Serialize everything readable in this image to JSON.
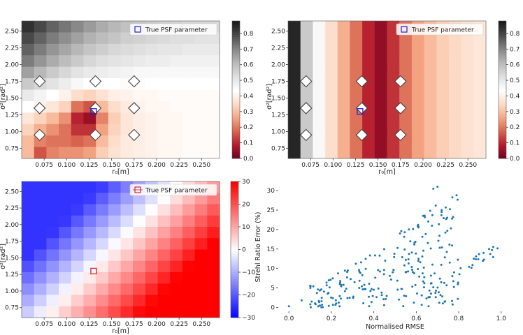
{
  "chart_data": [
    {
      "type": "heatmap",
      "panel": "top-left",
      "title": "",
      "xlabel": "r₀[m]",
      "ylabel": "σ²[rad²]",
      "x_ticks": [
        "0.075",
        "0.100",
        "0.125",
        "0.150",
        "0.175",
        "0.200",
        "0.225",
        "0.250"
      ],
      "y_ticks": [
        "0.75",
        "1.00",
        "1.25",
        "1.50",
        "1.75",
        "2.00",
        "2.25",
        "2.50"
      ],
      "xlim": [
        0.05,
        0.27
      ],
      "ylim": [
        0.6,
        2.65
      ],
      "colormap": "RdGy",
      "colorbar_ticks": [
        "0.8",
        "0.7",
        "0.6",
        "0.5",
        "0.4",
        "0.3",
        "0.2",
        "0.1",
        "0.0"
      ],
      "colorbar_range": [
        0.0,
        0.88
      ],
      "legend": "True PSF parameter",
      "legend_position": "top-right",
      "true_param": {
        "r0": 0.13,
        "sigma2": 1.3
      },
      "diamonds": [
        [
          0.07,
          1.75
        ],
        [
          0.132,
          1.75
        ],
        [
          0.175,
          1.75
        ],
        [
          0.07,
          1.35
        ],
        [
          0.132,
          1.35
        ],
        [
          0.175,
          1.35
        ],
        [
          0.07,
          0.95
        ],
        [
          0.132,
          0.95
        ],
        [
          0.175,
          0.95
        ]
      ],
      "rows_top_to_bottom": [
        [
          0.84,
          0.8,
          0.76,
          0.73,
          0.7,
          0.67,
          0.64,
          0.62,
          0.6,
          0.59,
          0.58,
          0.57,
          0.56,
          0.55,
          0.55,
          0.55
        ],
        [
          0.8,
          0.76,
          0.72,
          0.69,
          0.66,
          0.63,
          0.61,
          0.59,
          0.57,
          0.56,
          0.55,
          0.54,
          0.53,
          0.53,
          0.52,
          0.52
        ],
        [
          0.76,
          0.72,
          0.68,
          0.65,
          0.62,
          0.59,
          0.57,
          0.55,
          0.54,
          0.53,
          0.52,
          0.51,
          0.51,
          0.5,
          0.5,
          0.5
        ],
        [
          0.72,
          0.68,
          0.64,
          0.61,
          0.58,
          0.55,
          0.53,
          0.52,
          0.51,
          0.5,
          0.49,
          0.49,
          0.48,
          0.48,
          0.48,
          0.48
        ],
        [
          0.66,
          0.62,
          0.58,
          0.55,
          0.52,
          0.5,
          0.49,
          0.48,
          0.47,
          0.46,
          0.46,
          0.46,
          0.46,
          0.46,
          0.46,
          0.46
        ],
        [
          0.58,
          0.55,
          0.52,
          0.49,
          0.46,
          0.44,
          0.44,
          0.44,
          0.43,
          0.43,
          0.44,
          0.44,
          0.44,
          0.44,
          0.44,
          0.44
        ],
        [
          0.5,
          0.47,
          0.44,
          0.41,
          0.36,
          0.34,
          0.37,
          0.4,
          0.41,
          0.42,
          0.42,
          0.43,
          0.43,
          0.43,
          0.43,
          0.43
        ],
        [
          0.44,
          0.41,
          0.38,
          0.34,
          0.2,
          0.16,
          0.3,
          0.36,
          0.39,
          0.41,
          0.42,
          0.42,
          0.43,
          0.43,
          0.43,
          0.43
        ],
        [
          0.38,
          0.34,
          0.3,
          0.24,
          0.1,
          0.06,
          0.22,
          0.33,
          0.38,
          0.4,
          0.41,
          0.42,
          0.42,
          0.43,
          0.43,
          0.43
        ],
        [
          0.34,
          0.28,
          0.24,
          0.2,
          0.12,
          0.12,
          0.26,
          0.34,
          0.38,
          0.4,
          0.41,
          0.42,
          0.42,
          0.43,
          0.43,
          0.43
        ],
        [
          0.3,
          0.22,
          0.2,
          0.2,
          0.18,
          0.2,
          0.3,
          0.36,
          0.39,
          0.4,
          0.41,
          0.42,
          0.42,
          0.43,
          0.43,
          0.43
        ],
        [
          0.3,
          0.16,
          0.22,
          0.24,
          0.24,
          0.26,
          0.33,
          0.37,
          0.39,
          0.4,
          0.41,
          0.42,
          0.42,
          0.43,
          0.43,
          0.43
        ]
      ]
    },
    {
      "type": "heatmap",
      "panel": "top-right",
      "title": "",
      "xlabel": "r₀[m]",
      "ylabel": "σ²[rad²]",
      "x_ticks": [
        "0.075",
        "0.100",
        "0.125",
        "0.150",
        "0.175",
        "0.200",
        "0.225",
        "0.250"
      ],
      "y_ticks": [
        "0.75",
        "1.00",
        "1.25",
        "1.50",
        "1.75",
        "2.00",
        "2.25",
        "2.50"
      ],
      "xlim": [
        0.05,
        0.27
      ],
      "ylim": [
        0.6,
        2.65
      ],
      "colormap": "RdGy",
      "colorbar_ticks": [
        "0.8",
        "0.7",
        "0.6",
        "0.5",
        "0.4",
        "0.3",
        "0.2",
        "0.1",
        "0.0"
      ],
      "colorbar_range": [
        0.0,
        0.88
      ],
      "legend": "True PSF parameter",
      "legend_position": "top-right",
      "true_param": {
        "r0": 0.13,
        "sigma2": 1.3
      },
      "diamonds": [
        [
          0.07,
          1.75
        ],
        [
          0.132,
          1.75
        ],
        [
          0.175,
          1.75
        ],
        [
          0.07,
          1.35
        ],
        [
          0.132,
          1.35
        ],
        [
          0.175,
          1.35
        ],
        [
          0.07,
          0.95
        ],
        [
          0.132,
          0.95
        ],
        [
          0.175,
          0.95
        ]
      ],
      "column_values": [
        0.86,
        0.58,
        0.46,
        0.36,
        0.28,
        0.2,
        0.1,
        0.05,
        0.12,
        0.2,
        0.26,
        0.3,
        0.33,
        0.35,
        0.37,
        0.38
      ]
    },
    {
      "type": "heatmap",
      "panel": "bottom-left",
      "title": "",
      "xlabel": "r₀[m]",
      "ylabel": "σ²[rad²]",
      "x_ticks": [
        "0.075",
        "0.100",
        "0.125",
        "0.150",
        "0.175",
        "0.200",
        "0.225",
        "0.250"
      ],
      "y_ticks": [
        "0.75",
        "1.00",
        "1.25",
        "1.50",
        "1.75",
        "2.00",
        "2.25",
        "2.50"
      ],
      "xlim": [
        0.05,
        0.27
      ],
      "ylim": [
        0.6,
        2.65
      ],
      "colormap": "bwr",
      "colorbar_ticks": [
        "30",
        "20",
        "10",
        "0",
        "−10",
        "−20",
        "−30"
      ],
      "colorbar_range": [
        -30,
        30
      ],
      "legend": "True PSF parameter",
      "legend_position": "top-right",
      "true_param": {
        "r0": 0.13,
        "sigma2": 1.3
      }
    },
    {
      "type": "scatter",
      "panel": "bottom-right",
      "title": "",
      "xlabel": "Normalised RMSE",
      "ylabel": "Strehl Ratio Error (%)",
      "x_ticks": [
        "0.0",
        "0.2",
        "0.4",
        "0.6",
        "0.8",
        "1.0"
      ],
      "y_ticks": [
        "0",
        "5",
        "10",
        "15",
        "20",
        "25",
        "30"
      ],
      "xlim": [
        -0.05,
        1.05
      ],
      "ylim": [
        -1,
        32
      ],
      "color": "#1f77b4"
    }
  ]
}
